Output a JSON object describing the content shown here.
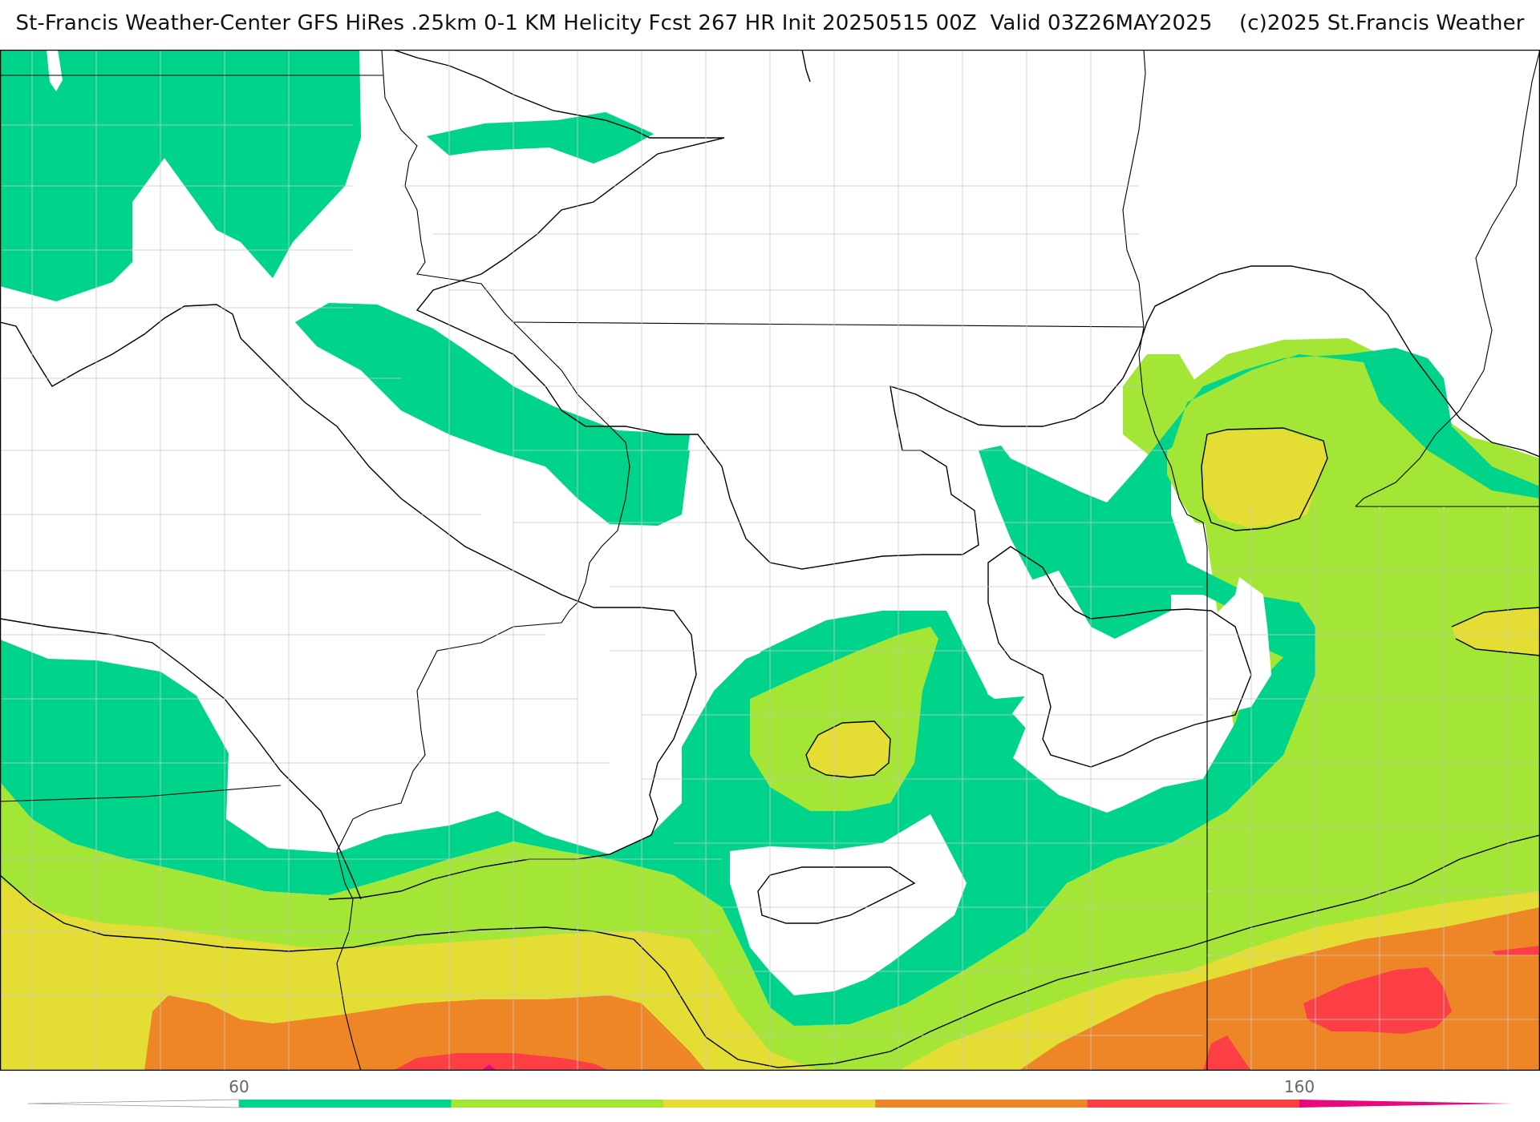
{
  "header": {
    "title": "St-Francis Weather-Center GFS HiRes .25km 0-1 KM Helicity Fcst 267 HR Init 20250515 00Z  Valid 03Z26MAY2025    (c)2025 St.Francis Weather"
  },
  "legend": {
    "tick_labels": [
      "60",
      "160"
    ],
    "bins": [
      {
        "min": 60,
        "max": 80,
        "color": "#00d48a"
      },
      {
        "min": 80,
        "max": 100,
        "color": "#a3e635"
      },
      {
        "min": 100,
        "max": 120,
        "color": "#e3dd34"
      },
      {
        "min": 120,
        "max": 140,
        "color": "#ee8527"
      },
      {
        "min": 140,
        "max": 160,
        "color": "#fb3f45"
      },
      {
        "min": 160,
        "max": 180,
        "color": "#e80a7c"
      }
    ]
  },
  "map": {
    "variable": "0-1 KM Helicity",
    "background_color": "#ffffff",
    "state_border_color": "#000000",
    "county_border_color": "#c8c8c8"
  }
}
